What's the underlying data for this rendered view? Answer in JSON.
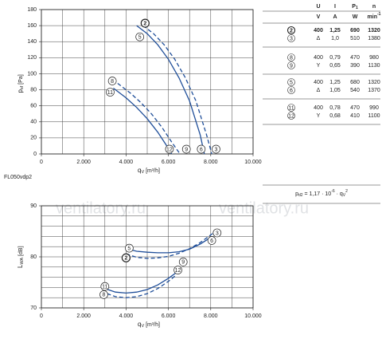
{
  "chart_data": [
    {
      "type": "line",
      "ylabel": {
        "main": "p",
        "sub": "sf",
        "unit": "[Pa]"
      },
      "xlabel": {
        "main": "q",
        "sub": "V",
        "unit": "[m³/h]"
      },
      "xlim": [
        0,
        10000
      ],
      "ylim": [
        0,
        180
      ],
      "xticks": [
        0,
        {
          "value": 2000,
          "label": "2.000"
        },
        {
          "value": 4000,
          "label": "4.000"
        },
        {
          "value": 6000,
          "label": "6.000"
        },
        {
          "value": 8000,
          "label": "8.000"
        },
        {
          "value": 10000,
          "label": "10.000"
        }
      ],
      "yticks": [
        0,
        20,
        40,
        60,
        80,
        100,
        120,
        140,
        160,
        180
      ],
      "grid": true,
      "grid_step_x": 1000,
      "grid_step_y": 20,
      "series": [
        {
          "color": "#1f4e99",
          "dashed": false,
          "x": [
            4500,
            5000,
            5500,
            6000,
            6500,
            7000,
            7500,
            7700
          ],
          "values": [
            160,
            150,
            136,
            118,
            95,
            66,
            24,
            0
          ]
        },
        {
          "color": "#1f4e99",
          "dashed": true,
          "x": [
            4800,
            5300,
            5800,
            6300,
            6800,
            7300,
            7800,
            8050
          ],
          "values": [
            160,
            150,
            136,
            118,
            95,
            66,
            24,
            0
          ]
        },
        {
          "color": "#1f4e99",
          "dashed": false,
          "x": [
            3400,
            4000,
            4500,
            5000,
            5500,
            6000,
            6150
          ],
          "values": [
            82,
            70,
            58,
            44,
            27,
            7,
            0
          ]
        },
        {
          "color": "#1f4e99",
          "dashed": true,
          "x": [
            3600,
            4200,
            4700,
            5200,
            5700,
            6200,
            6550
          ],
          "values": [
            88,
            76,
            64,
            50,
            33,
            13,
            0
          ]
        }
      ],
      "annotations": [
        {
          "text": "2",
          "x": 4900,
          "y": 163,
          "bold": true
        },
        {
          "text": "5",
          "x": 4650,
          "y": 146
        },
        {
          "text": "8",
          "x": 3350,
          "y": 91
        },
        {
          "text": "11",
          "x": 3250,
          "y": 77
        },
        {
          "text": "12",
          "x": 6050,
          "y": 6
        },
        {
          "text": "9",
          "x": 6850,
          "y": 6
        },
        {
          "text": "6",
          "x": 7550,
          "y": 6
        },
        {
          "text": "3",
          "x": 8250,
          "y": 6
        }
      ],
      "note": "FL050vdp2"
    },
    {
      "type": "line",
      "ylabel": {
        "main": "L",
        "sub": "WA",
        "unit": "[dB]"
      },
      "xlabel": {
        "main": "q",
        "sub": "V",
        "unit": "[m³/h]"
      },
      "xlim": [
        0,
        10000
      ],
      "ylim": [
        70,
        90
      ],
      "xticks": [
        0,
        {
          "value": 2000,
          "label": "2.000"
        },
        {
          "value": 4000,
          "label": "4.000"
        },
        {
          "value": 6000,
          "label": "6.000"
        },
        {
          "value": 8000,
          "label": "8.000"
        },
        {
          "value": 10000,
          "label": "10.000"
        }
      ],
      "yticks": [
        70,
        80,
        90
      ],
      "grid": true,
      "grid_step_x": 1000,
      "grid_step_y": 2,
      "series": [
        {
          "color": "#1f4e99",
          "dashed": false,
          "x": [
            4000,
            4500,
            5000,
            5500,
            6000,
            6500,
            7000,
            7500,
            8000
          ],
          "values": [
            81.6,
            81.1,
            80.9,
            80.8,
            80.8,
            81.0,
            81.5,
            82.5,
            83.8
          ]
        },
        {
          "color": "#1f4e99",
          "dashed": true,
          "x": [
            4000,
            4500,
            5000,
            5500,
            6000,
            6500,
            7000,
            7500,
            8100
          ],
          "values": [
            80.6,
            79.9,
            79.7,
            79.8,
            80.1,
            80.7,
            81.6,
            82.8,
            84.6
          ]
        },
        {
          "color": "#1f4e99",
          "dashed": false,
          "x": [
            3000,
            3500,
            4000,
            4500,
            5000,
            5500,
            6000,
            6600
          ],
          "values": [
            73.8,
            73.1,
            72.9,
            73.1,
            73.6,
            74.5,
            75.8,
            77.6
          ]
        },
        {
          "color": "#1f4e99",
          "dashed": true,
          "x": [
            3100,
            3500,
            4000,
            4500,
            5000,
            5500,
            6000,
            6300
          ],
          "values": [
            72.8,
            72.2,
            72.0,
            72.2,
            72.8,
            73.8,
            75.2,
            76.2
          ]
        }
      ],
      "annotations": [
        {
          "text": "3",
          "x": 8300,
          "y": 84.7
        },
        {
          "text": "6",
          "x": 8050,
          "y": 83.2
        },
        {
          "text": "5",
          "x": 4150,
          "y": 81.7
        },
        {
          "text": "2",
          "x": 4000,
          "y": 79.8,
          "bold": true
        },
        {
          "text": "9",
          "x": 6700,
          "y": 79.0
        },
        {
          "text": "12",
          "x": 6450,
          "y": 77.4
        },
        {
          "text": "11",
          "x": 3000,
          "y": 74.2
        },
        {
          "text": "8",
          "x": 2950,
          "y": 72.6
        }
      ]
    }
  ],
  "table": {
    "header": [
      "U",
      "I",
      "P",
      "n"
    ],
    "p_sub": "1",
    "units": [
      "V",
      "A",
      "W",
      "min"
    ],
    "n_unit_sup": "-1",
    "rows": [
      {
        "id": "2",
        "cells": [
          "400",
          "1,25",
          "690",
          "1320"
        ],
        "bold": true
      },
      {
        "id": "3",
        "cells": [
          "Δ",
          "1,0",
          "510",
          "1380"
        ]
      },
      {
        "id": "8",
        "cells": [
          "400",
          "0,79",
          "470",
          "980"
        ]
      },
      {
        "id": "9",
        "cells": [
          "Y",
          "0,65",
          "390",
          "1130"
        ]
      },
      {
        "id": "5",
        "cells": [
          "400",
          "1,25",
          "680",
          "1320"
        ]
      },
      {
        "id": "6",
        "cells": [
          "Δ",
          "1,05",
          "540",
          "1370"
        ]
      },
      {
        "id": "11",
        "cells": [
          "400",
          "0,78",
          "470",
          "990"
        ]
      },
      {
        "id": "12",
        "cells": [
          "Y",
          "0,68",
          "410",
          "1100"
        ]
      }
    ],
    "formula": {
      "p": "p",
      "p_sub": "d2",
      "eq": " = 1,17 · 10",
      "exp": "-6",
      "q": " · q",
      "q_sub": "V",
      "q_sup": "2"
    }
  },
  "watermark": [
    "ventilatory.ru",
    "ventilatory.ru"
  ]
}
